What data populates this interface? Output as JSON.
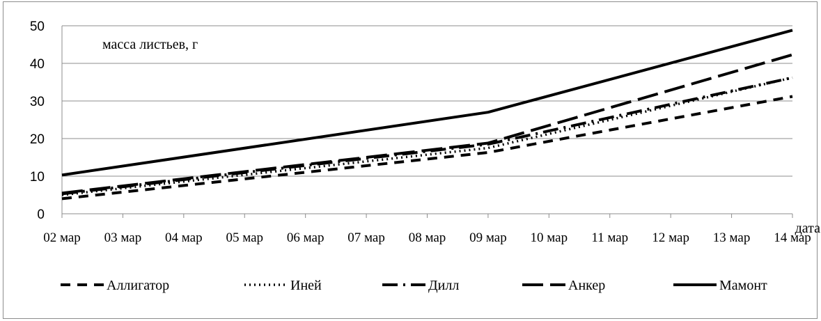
{
  "chart_data": {
    "type": "line",
    "ylabel": "масса листьев, г",
    "xlabel": "дата",
    "ylim": [
      0,
      50
    ],
    "yticks": [
      "0",
      "10",
      "20",
      "30",
      "40",
      "50"
    ],
    "categories": [
      "02 мар",
      "03 мар",
      "04 мар",
      "05 мар",
      "06 мар",
      "07 мар",
      "08 мар",
      "09 мар",
      "10 мар",
      "11 мар",
      "12 мар",
      "13 мар",
      "14 мар"
    ],
    "grid": true,
    "legend_position": "bottom",
    "series": [
      {
        "name": "Аллигатор",
        "style": "dashed",
        "color": "#000000",
        "points": [
          [
            0,
            4
          ],
          [
            7,
            16.3
          ],
          [
            12,
            31.2
          ]
        ]
      },
      {
        "name": "Иней",
        "style": "dotted",
        "color": "#000000",
        "points": [
          [
            0,
            5
          ],
          [
            7,
            17.5
          ],
          [
            12,
            36.2
          ]
        ]
      },
      {
        "name": "Дилл",
        "style": "long-dash-dot",
        "color": "#000000",
        "points": [
          [
            0,
            5.3
          ],
          [
            7,
            18.5
          ],
          [
            12,
            36.2
          ]
        ]
      },
      {
        "name": "Анкер",
        "style": "long-dash",
        "color": "#000000",
        "points": [
          [
            0,
            5.5
          ],
          [
            7,
            18.8
          ],
          [
            12,
            42.3
          ]
        ]
      },
      {
        "name": "Мамонт",
        "style": "solid",
        "color": "#000000",
        "points": [
          [
            0,
            10.3
          ],
          [
            7,
            27
          ],
          [
            12,
            48.8
          ]
        ]
      }
    ]
  }
}
